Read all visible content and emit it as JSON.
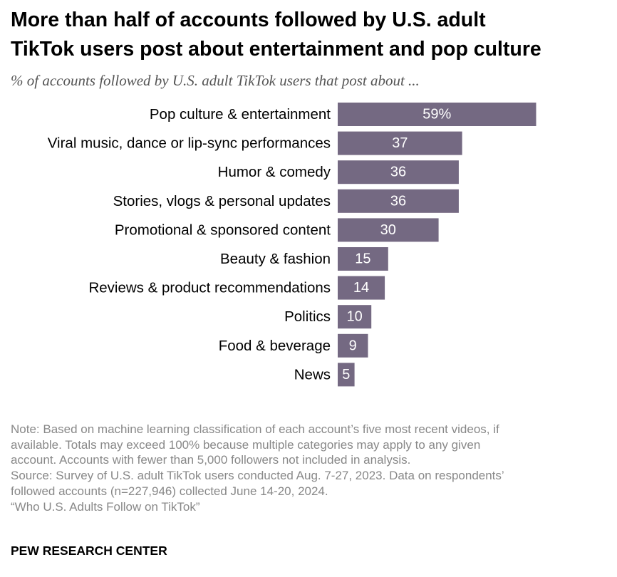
{
  "header": {
    "title_line1": "More than half of accounts followed by U.S. adult",
    "title_line2": "TikTok users post about entertainment and pop culture",
    "subtitle": "% of accounts followed by U.S. adult TikTok users that post about ..."
  },
  "chart_data": {
    "type": "bar",
    "orientation": "horizontal",
    "title": "More than half of accounts followed by U.S. adult TikTok users post about entertainment and pop culture",
    "subtitle": "% of accounts followed by U.S. adult TikTok users that post about ...",
    "categories": [
      "Pop culture & entertainment",
      "Viral music, dance or lip-sync performances",
      "Humor & comedy",
      "Stories, vlogs & personal updates",
      "Promotional & sponsored content",
      "Beauty & fashion",
      "Reviews & product recommendations",
      "Politics",
      "Food & beverage",
      "News"
    ],
    "values": [
      59,
      37,
      36,
      36,
      30,
      15,
      14,
      10,
      9,
      5
    ],
    "value_labels": [
      "59%",
      "37",
      "36",
      "36",
      "30",
      "15",
      "14",
      "10",
      "9",
      "5"
    ],
    "unit": "%",
    "xlim": [
      0,
      100
    ],
    "grid": false,
    "legend": "none",
    "bar_color": "#746982"
  },
  "footer": {
    "note_line1": "Note: Based on machine learning classification of each account’s five most recent videos, if",
    "note_line2": "available. Totals may exceed 100% because multiple categories may apply to any given",
    "note_line3": "account. Accounts with fewer than 5,000 followers not included in analysis.",
    "source_line1": "Source: Survey of U.S. adult TikTok users conducted Aug. 7-27, 2023. Data on respondents’",
    "source_line2": "followed accounts (n=227,946) collected June 14-20, 2024.",
    "report_title": "“Who U.S. Adults Follow on TikTok”",
    "brand": "PEW RESEARCH CENTER"
  },
  "colors": {
    "bar": "#746982",
    "bar_label": "#ffffff",
    "note_text": "#888888",
    "subtitle_text": "#555555"
  }
}
